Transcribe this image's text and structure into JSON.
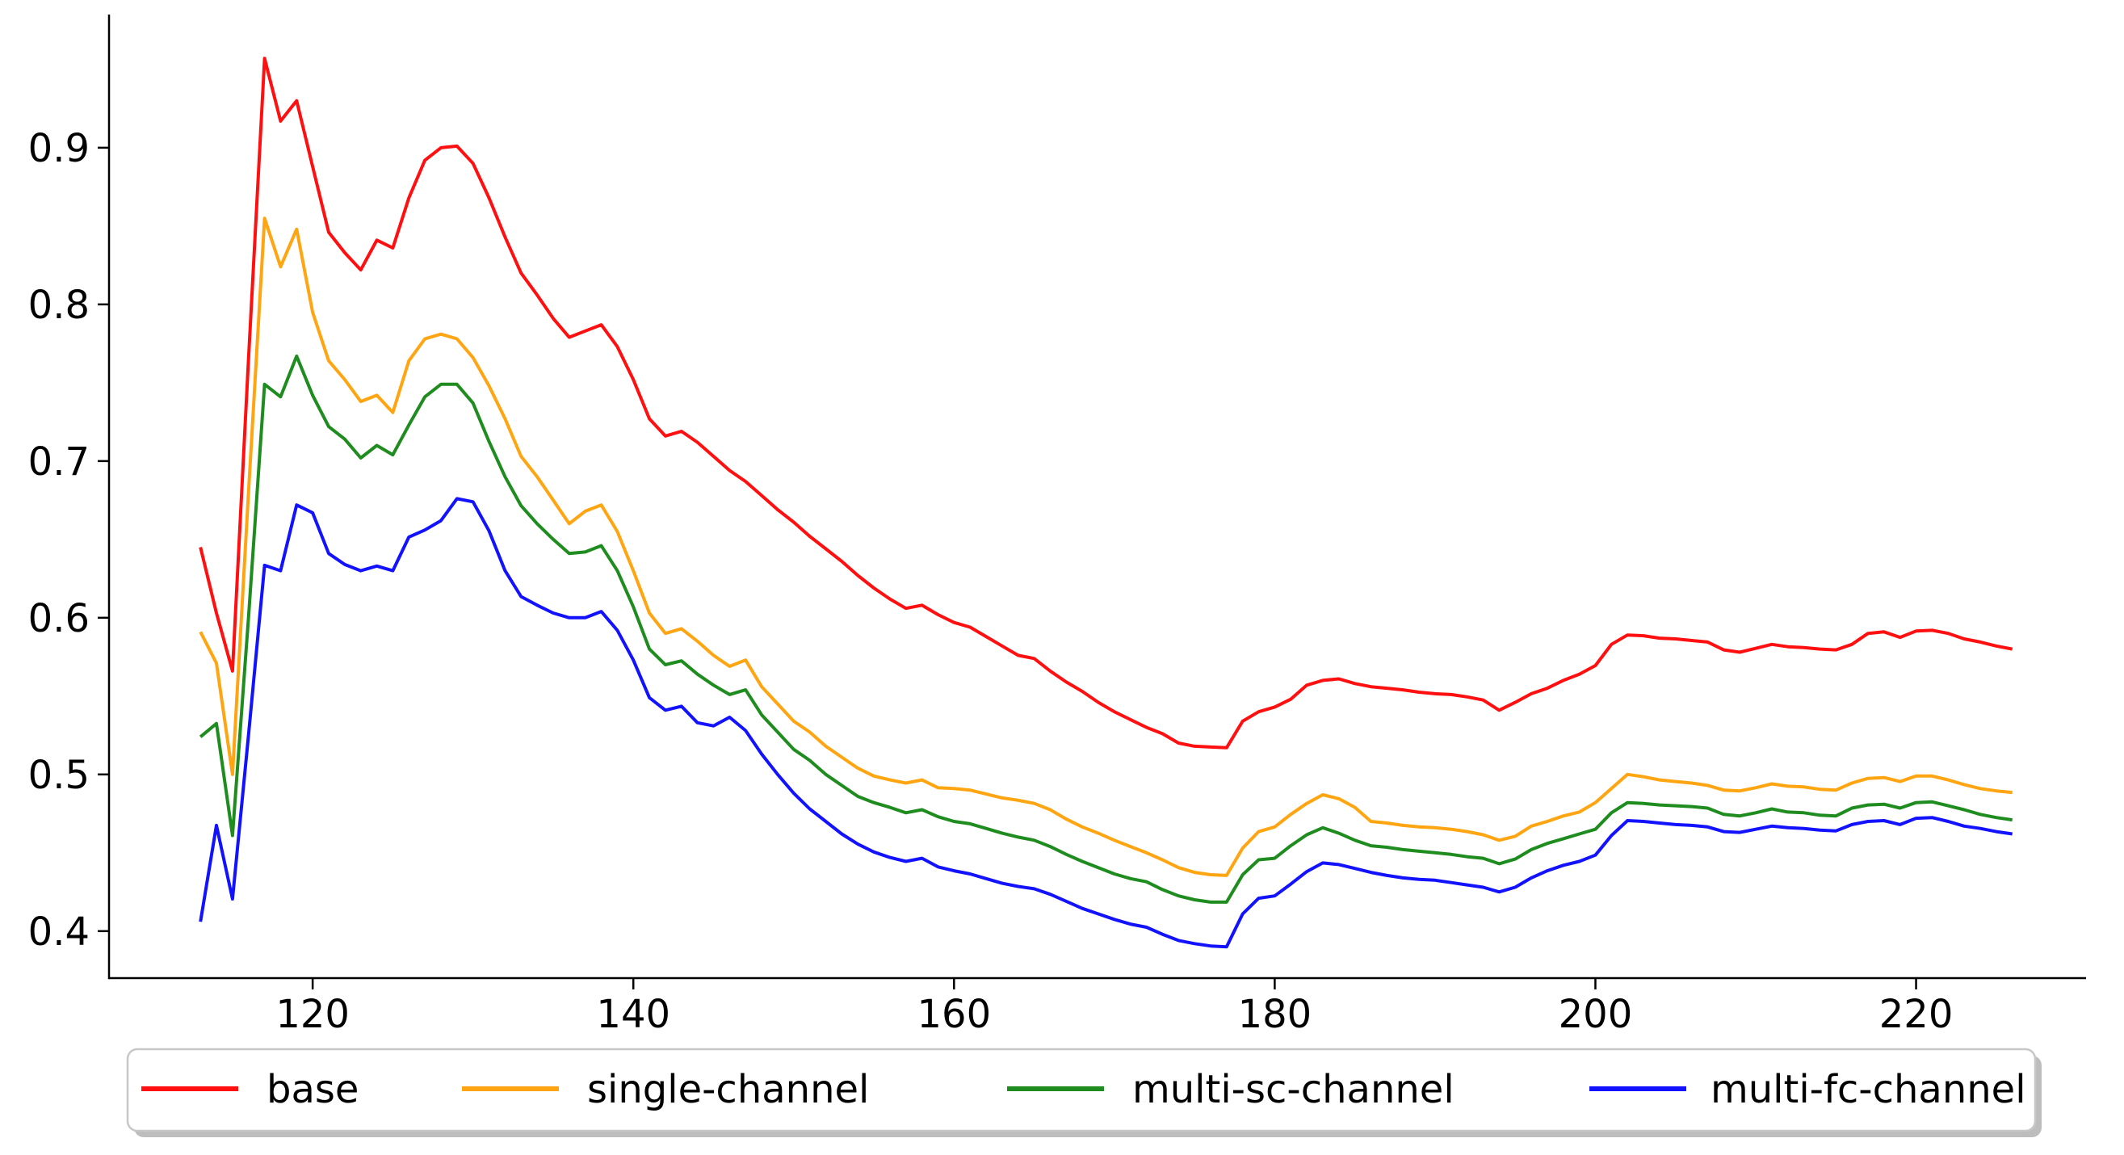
{
  "figure": {
    "background": "#ffffff"
  },
  "chart_data": {
    "type": "line",
    "title": "",
    "xlabel": "",
    "ylabel": "",
    "grid": false,
    "xlim": [
      107.3,
      230.6
    ],
    "ylim": [
      0.37,
      0.985
    ],
    "x_ticks": [
      120,
      140,
      160,
      180,
      200,
      220
    ],
    "y_ticks": [
      0.4,
      0.5,
      0.6,
      0.7,
      0.8,
      0.9
    ],
    "axis_color": "#000000",
    "x": [
      113,
      114,
      115,
      116,
      117,
      118,
      119,
      120,
      121,
      122,
      123,
      124,
      125,
      126,
      127,
      128,
      129,
      130,
      131,
      132,
      133,
      134,
      135,
      136,
      137,
      138,
      139,
      140,
      141,
      142,
      143,
      144,
      145,
      146,
      147,
      148,
      149,
      150,
      151,
      152,
      153,
      154,
      155,
      156,
      157,
      158,
      159,
      160,
      161,
      162,
      163,
      164,
      165,
      166,
      167,
      168,
      169,
      170,
      171,
      172,
      173,
      174,
      175,
      176,
      177,
      178,
      179,
      180,
      181,
      182,
      183,
      184,
      185,
      186,
      187,
      188,
      189,
      190,
      191,
      192,
      193,
      194,
      195,
      196,
      197,
      198,
      199,
      200,
      201,
      202,
      203,
      204,
      205,
      206,
      207,
      208,
      209,
      210,
      211,
      212,
      213,
      214,
      215,
      216,
      217,
      218,
      219,
      220,
      221,
      222,
      223,
      224,
      225,
      226
    ],
    "series": [
      {
        "name": "base",
        "color": "#ff0f0f",
        "values": [
          0.645,
          0.603,
          0.566,
          0.765,
          0.957,
          0.917,
          0.93,
          0.888,
          0.846,
          0.833,
          0.822,
          0.841,
          0.836,
          0.868,
          0.892,
          0.9,
          0.901,
          0.89,
          0.868,
          0.843,
          0.82,
          0.806,
          0.791,
          0.779,
          0.783,
          0.787,
          0.773,
          0.752,
          0.727,
          0.716,
          0.719,
          0.712,
          0.703,
          0.694,
          0.687,
          0.678,
          0.669,
          0.661,
          0.652,
          0.644,
          0.636,
          0.627,
          0.619,
          0.612,
          0.606,
          0.608,
          0.602,
          0.597,
          0.594,
          0.588,
          0.582,
          0.576,
          0.574,
          0.566,
          0.559,
          0.553,
          0.546,
          0.54,
          0.535,
          0.53,
          0.526,
          0.52,
          0.518,
          0.5175,
          0.517,
          0.534,
          0.54,
          0.543,
          0.548,
          0.557,
          0.56,
          0.561,
          0.558,
          0.556,
          0.555,
          0.554,
          0.5525,
          0.5515,
          0.551,
          0.5495,
          0.5475,
          0.541,
          0.546,
          0.5515,
          0.555,
          0.56,
          0.564,
          0.5695,
          0.583,
          0.589,
          0.5885,
          0.587,
          0.5865,
          0.5855,
          0.5845,
          0.5795,
          0.578,
          0.5805,
          0.583,
          0.5815,
          0.581,
          0.58,
          0.5795,
          0.583,
          0.59,
          0.591,
          0.5875,
          0.5915,
          0.592,
          0.59,
          0.5865,
          0.5845,
          0.582,
          0.58
        ]
      },
      {
        "name": "single-channel",
        "color": "#ffa512",
        "values": [
          0.591,
          0.571,
          0.5,
          0.68,
          0.855,
          0.824,
          0.848,
          0.795,
          0.764,
          0.752,
          0.738,
          0.742,
          0.731,
          0.764,
          0.778,
          0.781,
          0.778,
          0.766,
          0.748,
          0.727,
          0.703,
          0.69,
          0.675,
          0.66,
          0.668,
          0.672,
          0.655,
          0.63,
          0.603,
          0.59,
          0.593,
          0.585,
          0.576,
          0.569,
          0.573,
          0.556,
          0.545,
          0.534,
          0.527,
          0.518,
          0.511,
          0.504,
          0.499,
          0.4965,
          0.4945,
          0.4965,
          0.4915,
          0.491,
          0.49,
          0.4875,
          0.485,
          0.4835,
          0.4815,
          0.4775,
          0.4715,
          0.4665,
          0.4625,
          0.458,
          0.454,
          0.45,
          0.4455,
          0.4405,
          0.4375,
          0.436,
          0.4355,
          0.453,
          0.4635,
          0.4665,
          0.4745,
          0.4815,
          0.487,
          0.4845,
          0.479,
          0.47,
          0.469,
          0.4675,
          0.4665,
          0.466,
          0.465,
          0.4635,
          0.4615,
          0.458,
          0.4605,
          0.467,
          0.47,
          0.4735,
          0.476,
          0.482,
          0.491,
          0.5,
          0.4985,
          0.4965,
          0.4955,
          0.4945,
          0.493,
          0.49,
          0.4895,
          0.4915,
          0.494,
          0.4925,
          0.492,
          0.4905,
          0.49,
          0.4945,
          0.4975,
          0.498,
          0.4955,
          0.499,
          0.499,
          0.4965,
          0.4935,
          0.491,
          0.4895,
          0.4885
        ]
      },
      {
        "name": "multi-sc-channel",
        "color": "#1e8c1e",
        "values": [
          0.524,
          0.5325,
          0.461,
          0.6,
          0.749,
          0.741,
          0.767,
          0.742,
          0.722,
          0.714,
          0.702,
          0.71,
          0.704,
          0.723,
          0.741,
          0.749,
          0.749,
          0.737,
          0.7125,
          0.69,
          0.6715,
          0.66,
          0.65,
          0.641,
          0.642,
          0.646,
          0.63,
          0.607,
          0.58,
          0.57,
          0.5725,
          0.564,
          0.557,
          0.551,
          0.554,
          0.538,
          0.527,
          0.516,
          0.509,
          0.5,
          0.493,
          0.486,
          0.482,
          0.479,
          0.4755,
          0.4775,
          0.473,
          0.47,
          0.4685,
          0.4655,
          0.4625,
          0.46,
          0.458,
          0.454,
          0.449,
          0.4445,
          0.4405,
          0.4365,
          0.4335,
          0.4315,
          0.4265,
          0.4225,
          0.42,
          0.4185,
          0.4185,
          0.436,
          0.4455,
          0.4465,
          0.4545,
          0.4615,
          0.466,
          0.4625,
          0.458,
          0.4545,
          0.4535,
          0.452,
          0.451,
          0.45,
          0.449,
          0.4475,
          0.4465,
          0.443,
          0.446,
          0.452,
          0.456,
          0.459,
          0.462,
          0.465,
          0.4755,
          0.482,
          0.4815,
          0.4805,
          0.48,
          0.4795,
          0.4785,
          0.4745,
          0.4735,
          0.4755,
          0.478,
          0.476,
          0.4755,
          0.474,
          0.4735,
          0.4785,
          0.4805,
          0.481,
          0.4785,
          0.482,
          0.4825,
          0.48,
          0.4775,
          0.4745,
          0.4725,
          0.471
        ]
      },
      {
        "name": "multi-fc-channel",
        "color": "#1212ff",
        "values": [
          0.406,
          0.4675,
          0.4205,
          0.525,
          0.6335,
          0.63,
          0.672,
          0.667,
          0.641,
          0.634,
          0.63,
          0.633,
          0.63,
          0.6515,
          0.656,
          0.662,
          0.676,
          0.674,
          0.6555,
          0.63,
          0.6135,
          0.608,
          0.603,
          0.6,
          0.6,
          0.604,
          0.592,
          0.573,
          0.549,
          0.541,
          0.5435,
          0.533,
          0.531,
          0.5365,
          0.528,
          0.513,
          0.5,
          0.488,
          0.478,
          0.47,
          0.462,
          0.4555,
          0.4505,
          0.447,
          0.4445,
          0.4465,
          0.441,
          0.4385,
          0.4365,
          0.4335,
          0.4305,
          0.4285,
          0.427,
          0.4235,
          0.419,
          0.4145,
          0.411,
          0.4075,
          0.4045,
          0.4025,
          0.398,
          0.394,
          0.392,
          0.3905,
          0.39,
          0.411,
          0.421,
          0.4225,
          0.43,
          0.438,
          0.4435,
          0.4425,
          0.44,
          0.4375,
          0.4355,
          0.434,
          0.433,
          0.4325,
          0.431,
          0.4295,
          0.428,
          0.425,
          0.428,
          0.434,
          0.4385,
          0.442,
          0.4445,
          0.4485,
          0.461,
          0.4705,
          0.47,
          0.469,
          0.468,
          0.4675,
          0.4665,
          0.4635,
          0.463,
          0.465,
          0.467,
          0.466,
          0.4655,
          0.4645,
          0.464,
          0.468,
          0.47,
          0.4705,
          0.468,
          0.472,
          0.4725,
          0.47,
          0.467,
          0.4655,
          0.4635,
          0.462
        ]
      }
    ],
    "legend": {
      "position": "bottom",
      "border_color": "#c7c7c7",
      "shadow_color": "#bdbdbd",
      "background": "#ffffff",
      "entries": [
        {
          "label": "base",
          "color": "#ff0f0f"
        },
        {
          "label": "single-channel",
          "color": "#ffa512"
        },
        {
          "label": "multi-sc-channel",
          "color": "#1e8c1e"
        },
        {
          "label": "multi-fc-channel",
          "color": "#1212ff"
        }
      ]
    }
  }
}
